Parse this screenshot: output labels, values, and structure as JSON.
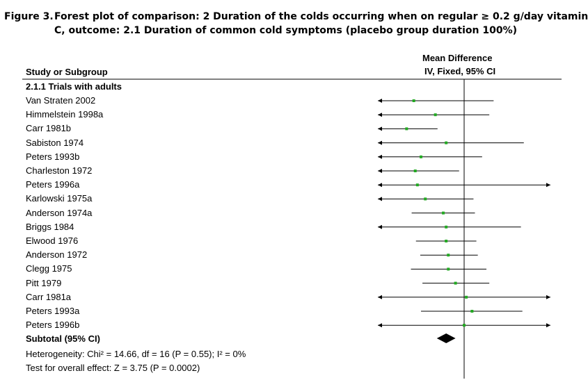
{
  "figure": {
    "label": "Figure 3.",
    "title_line1": "Forest plot of comparison: 2 Duration of the colds occurring when on regular ≥ 0.2 g/day vitamin",
    "title_line2": "C, outcome: 2.1 Duration of common cold symptoms (placebo group duration 100%)"
  },
  "header": {
    "study_col": "Study or Subgroup",
    "effect_col_line1": "Mean Difference",
    "effect_col_line2": "IV, Fixed, 95% CI"
  },
  "colors": {
    "marker": "#22aa22",
    "line": "#000000"
  },
  "chart_data": {
    "type": "forest",
    "subgroup": "2.1.1 Trials with adults",
    "studies": [
      {
        "name": "Van Straten 2002",
        "md": -70,
        "lower": -120,
        "upper": 41,
        "arrow_left": true,
        "arrow_right": false
      },
      {
        "name": "Himmelstein 1998a",
        "md": -40,
        "lower": -120,
        "upper": 35,
        "arrow_left": true,
        "arrow_right": false
      },
      {
        "name": "Carr 1981b",
        "md": -80,
        "lower": -120,
        "upper": -37,
        "arrow_left": true,
        "arrow_right": false
      },
      {
        "name": "Sabiston 1974",
        "md": -25,
        "lower": -120,
        "upper": 83,
        "arrow_left": true,
        "arrow_right": false
      },
      {
        "name": "Peters 1993b",
        "md": -60,
        "lower": -120,
        "upper": 25,
        "arrow_left": true,
        "arrow_right": false
      },
      {
        "name": "Charleston 1972",
        "md": -68,
        "lower": -120,
        "upper": -7,
        "arrow_left": true,
        "arrow_right": false
      },
      {
        "name": "Peters 1996a",
        "md": -65,
        "lower": -120,
        "upper": 120,
        "arrow_left": true,
        "arrow_right": true
      },
      {
        "name": "Karlowski 1975a",
        "md": -54,
        "lower": -120,
        "upper": 13,
        "arrow_left": true,
        "arrow_right": false
      },
      {
        "name": "Anderson 1974a",
        "md": -29,
        "lower": -73,
        "upper": 15,
        "arrow_left": false,
        "arrow_right": false
      },
      {
        "name": "Briggs 1984",
        "md": -25,
        "lower": -120,
        "upper": 79,
        "arrow_left": true,
        "arrow_right": false
      },
      {
        "name": "Elwood 1976",
        "md": -25,
        "lower": -67,
        "upper": 17,
        "arrow_left": false,
        "arrow_right": false
      },
      {
        "name": "Anderson 1972",
        "md": -22,
        "lower": -61,
        "upper": 19,
        "arrow_left": false,
        "arrow_right": false
      },
      {
        "name": "Clegg 1975",
        "md": -22,
        "lower": -74,
        "upper": 31,
        "arrow_left": false,
        "arrow_right": false
      },
      {
        "name": "Pitt 1979",
        "md": -12,
        "lower": -58,
        "upper": 35,
        "arrow_left": false,
        "arrow_right": false
      },
      {
        "name": "Carr 1981a",
        "md": 3,
        "lower": -120,
        "upper": 120,
        "arrow_left": true,
        "arrow_right": true
      },
      {
        "name": "Peters 1993a",
        "md": 11,
        "lower": -60,
        "upper": 81,
        "arrow_left": false,
        "arrow_right": false
      },
      {
        "name": "Peters 1996b",
        "md": 0,
        "lower": -120,
        "upper": 120,
        "arrow_left": true,
        "arrow_right": true
      }
    ],
    "subtotal": {
      "label": "Subtotal (95% CI)",
      "md": -25,
      "lower": -38,
      "upper": -12
    },
    "heterogeneity": "Heterogeneity: Chi² = 14.66, df = 16 (P = 0.55); I² = 0%",
    "overall_effect": "Test for overall effect: Z = 3.75 (P = 0.0002)",
    "x_range": [
      -120,
      120
    ],
    "null_value": 0
  }
}
